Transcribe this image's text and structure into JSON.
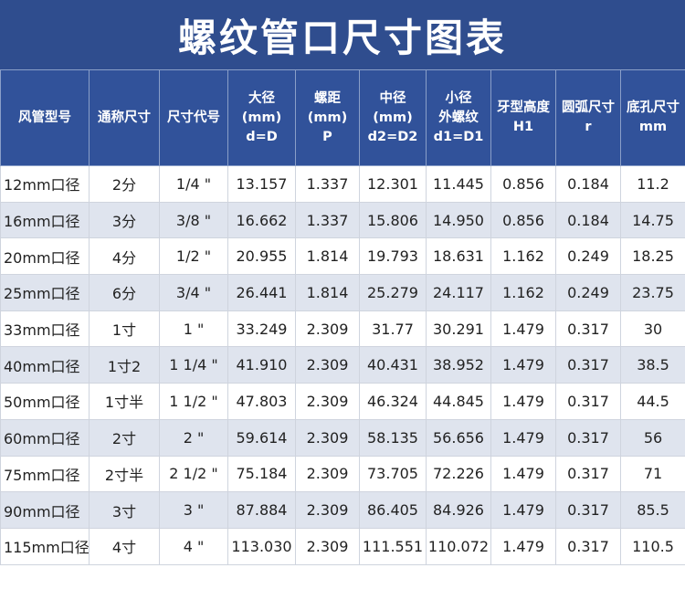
{
  "title": "螺纹管口尺寸图表",
  "colors": {
    "header_bg": "#31529a",
    "title_bg": "#2f4d8e",
    "alt_row_bg": "#dfe4ee",
    "text": "#222222"
  },
  "columns": [
    {
      "lines": [
        "风管型号"
      ]
    },
    {
      "lines": [
        "通称尺寸"
      ]
    },
    {
      "lines": [
        "尺寸代号"
      ]
    },
    {
      "lines": [
        "大径",
        "(mm)",
        "d=D"
      ]
    },
    {
      "lines": [
        "螺距",
        "(mm)",
        "P"
      ]
    },
    {
      "lines": [
        "中径",
        "(mm)",
        "d2=D2"
      ]
    },
    {
      "lines": [
        "小径",
        "外螺纹",
        "d1=D1"
      ]
    },
    {
      "lines": [
        "牙型高度",
        "H1"
      ]
    },
    {
      "lines": [
        "圆弧尺寸",
        "r"
      ]
    },
    {
      "lines": [
        "底孔尺寸",
        "mm"
      ]
    }
  ],
  "rows": [
    [
      "12mm口径",
      "2分",
      "1/4 \"",
      "13.157",
      "1.337",
      "12.301",
      "11.445",
      "0.856",
      "0.184",
      "11.2"
    ],
    [
      "16mm口径",
      "3分",
      "3/8 \"",
      "16.662",
      "1.337",
      "15.806",
      "14.950",
      "0.856",
      "0.184",
      "14.75"
    ],
    [
      "20mm口径",
      "4分",
      "1/2 \"",
      "20.955",
      "1.814",
      "19.793",
      "18.631",
      "1.162",
      "0.249",
      "18.25"
    ],
    [
      "25mm口径",
      "6分",
      "3/4 \"",
      "26.441",
      "1.814",
      "25.279",
      "24.117",
      "1.162",
      "0.249",
      "23.75"
    ],
    [
      "33mm口径",
      "1寸",
      "1 \"",
      "33.249",
      "2.309",
      "31.77",
      "30.291",
      "1.479",
      "0.317",
      "30"
    ],
    [
      "40mm口径",
      "1寸2",
      "1 1/4 \"",
      "41.910",
      "2.309",
      "40.431",
      "38.952",
      "1.479",
      "0.317",
      "38.5"
    ],
    [
      "50mm口径",
      "1寸半",
      "1 1/2 \"",
      "47.803",
      "2.309",
      "46.324",
      "44.845",
      "1.479",
      "0.317",
      "44.5"
    ],
    [
      "60mm口径",
      "2寸",
      "2 \"",
      "59.614",
      "2.309",
      "58.135",
      "56.656",
      "1.479",
      "0.317",
      "56"
    ],
    [
      "75mm口径",
      "2寸半",
      "2 1/2 \"",
      "75.184",
      "2.309",
      "73.705",
      "72.226",
      "1.479",
      "0.317",
      "71"
    ],
    [
      "90mm口径",
      "3寸",
      "3 \"",
      "87.884",
      "2.309",
      "86.405",
      "84.926",
      "1.479",
      "0.317",
      "85.5"
    ],
    [
      "115mm口径",
      "4寸",
      "4 \"",
      "113.030",
      "2.309",
      "111.551",
      "110.072",
      "1.479",
      "0.317",
      "110.5"
    ]
  ]
}
